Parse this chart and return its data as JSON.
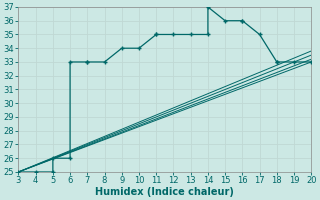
{
  "xlabel": "Humidex (Indice chaleur)",
  "bg_color": "#cce8e4",
  "grid_color": "#c0d8d4",
  "line_color": "#006868",
  "xlim": [
    3,
    20
  ],
  "ylim": [
    25,
    37
  ],
  "xticks": [
    3,
    4,
    5,
    6,
    7,
    8,
    9,
    10,
    11,
    12,
    13,
    14,
    15,
    16,
    17,
    18,
    19,
    20
  ],
  "yticks": [
    25,
    26,
    27,
    28,
    29,
    30,
    31,
    32,
    33,
    34,
    35,
    36,
    37
  ],
  "main_x": [
    3,
    4,
    5,
    5,
    6,
    6,
    7,
    7,
    8,
    9,
    10,
    11,
    11,
    12,
    13,
    14,
    14,
    15,
    16,
    16,
    17,
    18,
    18,
    19,
    20
  ],
  "main_y": [
    25,
    25,
    25,
    26,
    26,
    33,
    33,
    33,
    33,
    34,
    34,
    35,
    35,
    35,
    35,
    35,
    37,
    36,
    36,
    36,
    35,
    33,
    33,
    33,
    33
  ],
  "ref_lines": [
    {
      "x": [
        3,
        20
      ],
      "y": [
        25,
        33.0
      ]
    },
    {
      "x": [
        3,
        20
      ],
      "y": [
        25,
        33.2
      ]
    },
    {
      "x": [
        3,
        20
      ],
      "y": [
        25,
        33.5
      ]
    },
    {
      "x": [
        3,
        20
      ],
      "y": [
        25,
        33.8
      ]
    }
  ],
  "xlabel_fontsize": 7,
  "tick_fontsize": 6
}
